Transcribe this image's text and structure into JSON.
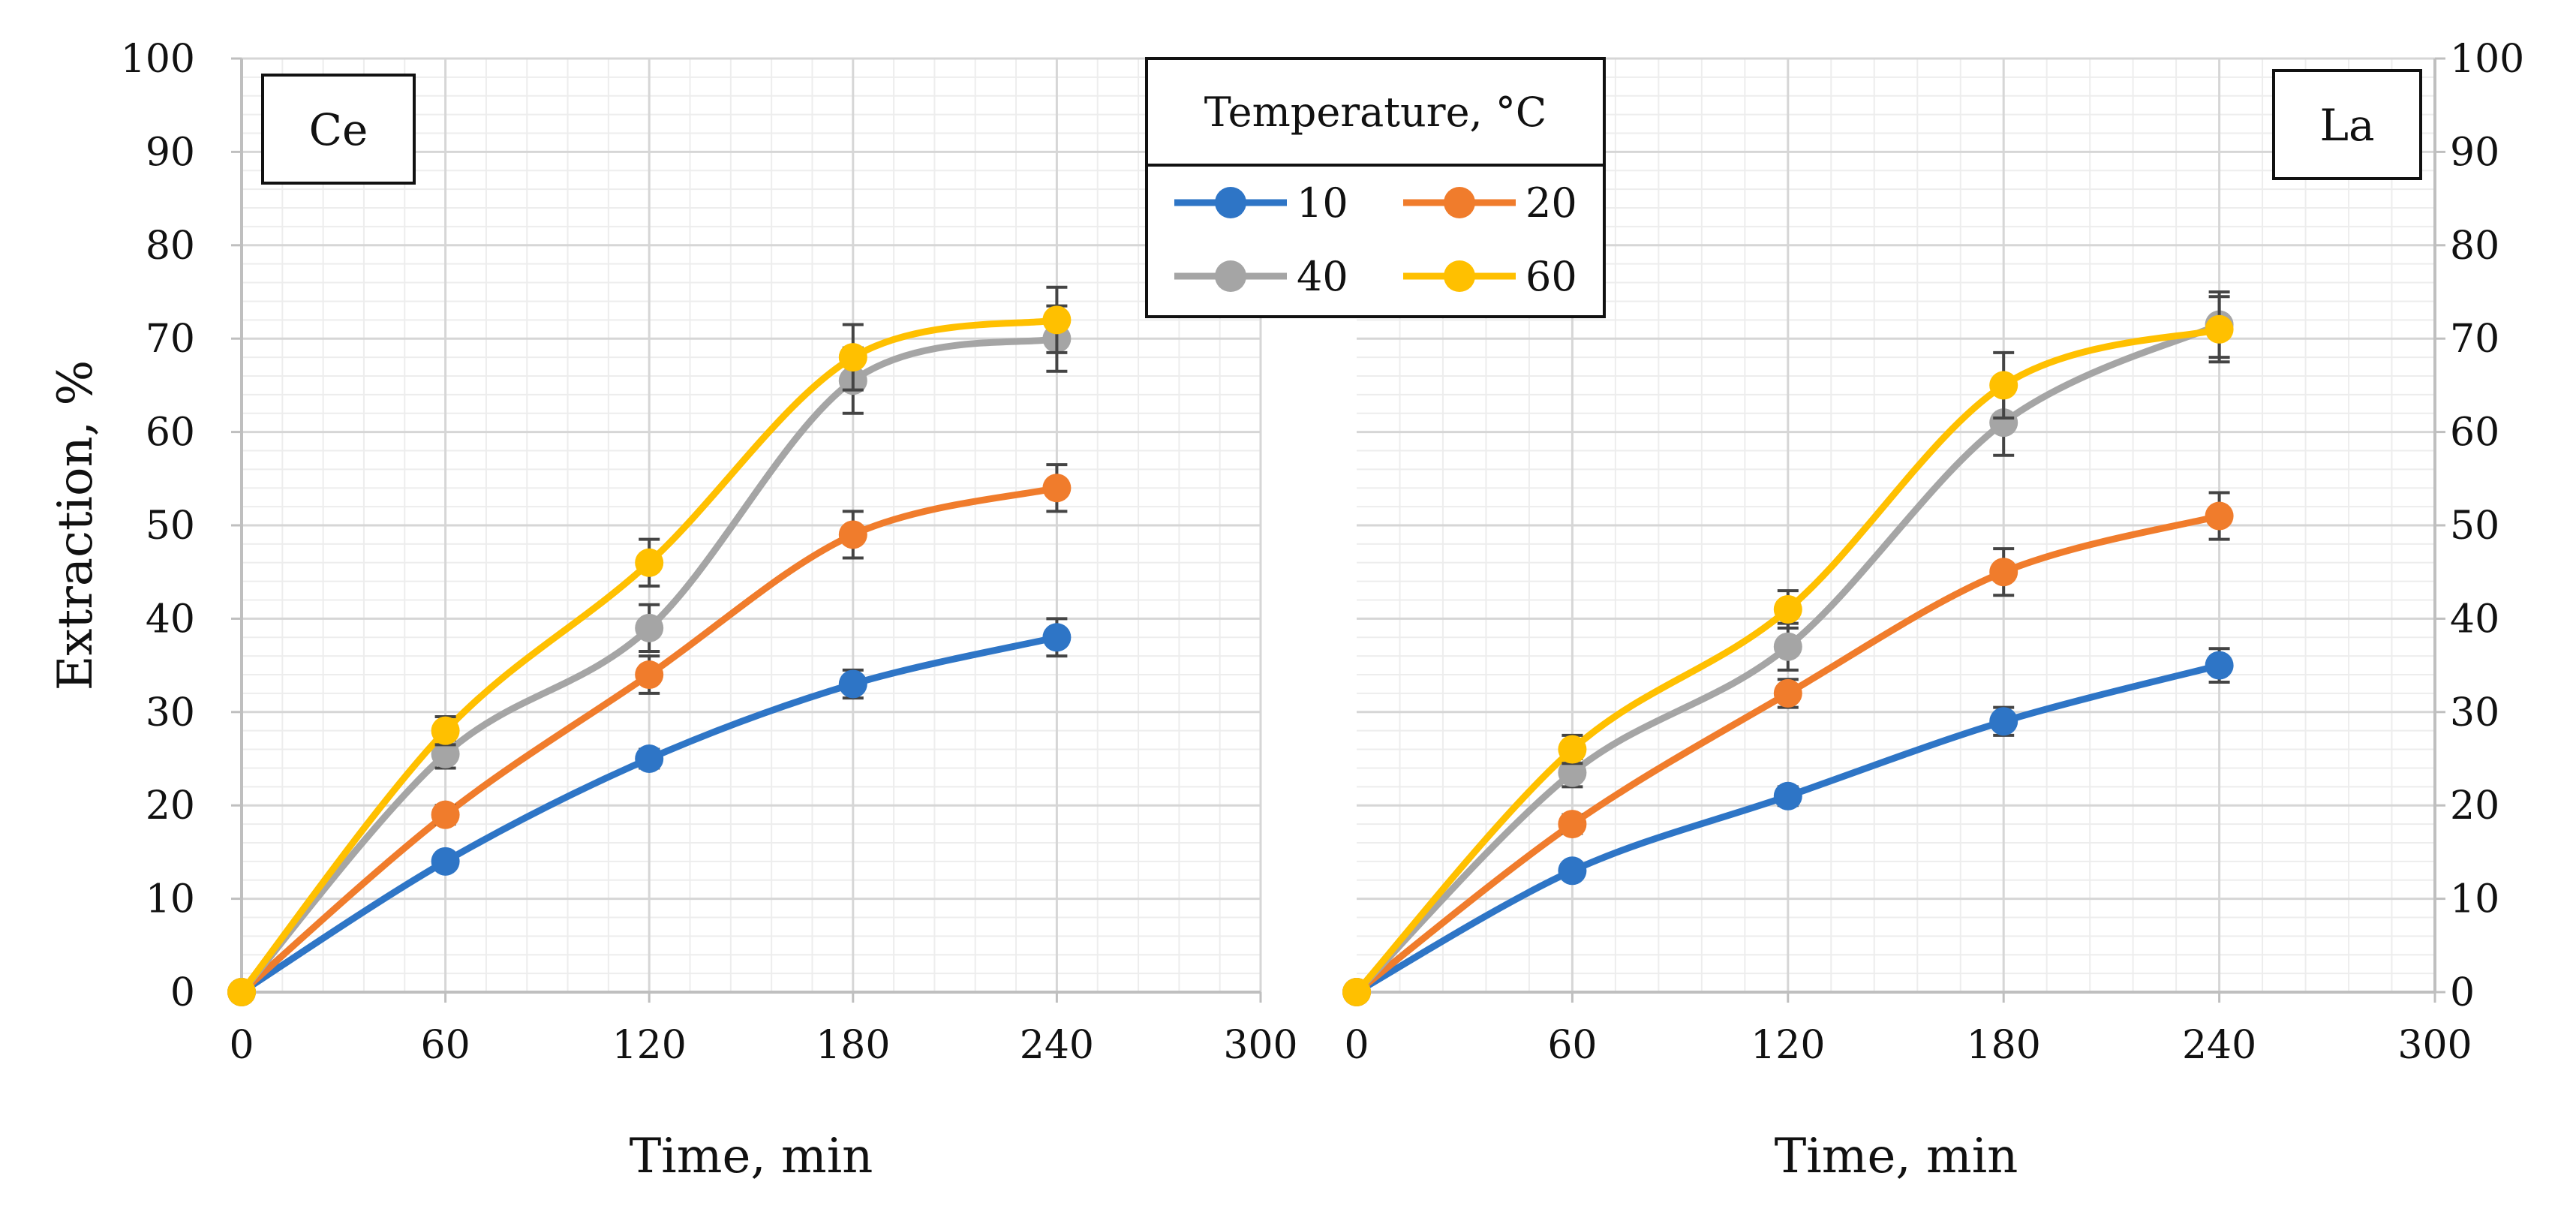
{
  "legend": {
    "title": "Temperature, °C",
    "entries": [
      {
        "label": "10",
        "color": "#2E75C6"
      },
      {
        "label": "20",
        "color": "#F07C2C"
      },
      {
        "label": "40",
        "color": "#A5A5A5"
      },
      {
        "label": "60",
        "color": "#FFC000"
      }
    ]
  },
  "chart_data": [
    {
      "type": "line",
      "panel_label": "Ce",
      "title": "",
      "xlabel": "Time, min",
      "ylabel": "Extraction, %",
      "xlim": [
        0,
        300
      ],
      "ylim": [
        0,
        100
      ],
      "xticks": [
        "0",
        "60",
        "120",
        "180",
        "240",
        "300"
      ],
      "yticks": [
        "0",
        "10",
        "20",
        "30",
        "40",
        "50",
        "60",
        "70",
        "80",
        "90",
        "100"
      ],
      "y_axis_side": "left",
      "x": [
        0,
        60,
        120,
        180,
        240
      ],
      "series": [
        {
          "name": "10",
          "color": "#2E75C6",
          "values": [
            0,
            14,
            25,
            33,
            38
          ],
          "errors": [
            0,
            0.8,
            1,
            1.5,
            2
          ]
        },
        {
          "name": "20",
          "color": "#F07C2C",
          "values": [
            0,
            19,
            34,
            49,
            54
          ],
          "errors": [
            0,
            1,
            2,
            2.5,
            2.5
          ]
        },
        {
          "name": "40",
          "color": "#A5A5A5",
          "values": [
            0,
            25.5,
            39,
            65.5,
            70
          ],
          "errors": [
            0,
            1.5,
            2.5,
            3.5,
            3.5
          ]
        },
        {
          "name": "60",
          "color": "#FFC000",
          "values": [
            0,
            28,
            46,
            68,
            72
          ],
          "errors": [
            0,
            1.5,
            2.5,
            3.5,
            3.5
          ]
        }
      ]
    },
    {
      "type": "line",
      "panel_label": "La",
      "title": "",
      "xlabel": "Time, min",
      "ylabel": "",
      "xlim": [
        0,
        300
      ],
      "ylim": [
        0,
        100
      ],
      "xticks": [
        "0",
        "60",
        "120",
        "180",
        "240",
        "300"
      ],
      "yticks": [
        "0",
        "10",
        "20",
        "30",
        "40",
        "50",
        "60",
        "70",
        "80",
        "90",
        "100"
      ],
      "y_axis_side": "right",
      "x": [
        0,
        60,
        120,
        180,
        240
      ],
      "series": [
        {
          "name": "10",
          "color": "#2E75C6",
          "values": [
            0,
            13,
            21,
            29,
            35
          ],
          "errors": [
            0,
            0.8,
            1,
            1.5,
            1.8
          ]
        },
        {
          "name": "20",
          "color": "#F07C2C",
          "values": [
            0,
            18,
            32,
            45,
            51
          ],
          "errors": [
            0,
            1,
            1.5,
            2.5,
            2.5
          ]
        },
        {
          "name": "40",
          "color": "#A5A5A5",
          "values": [
            0,
            23.5,
            37,
            61,
            71.5
          ],
          "errors": [
            0,
            1.5,
            2.5,
            3.5,
            3.5
          ]
        },
        {
          "name": "60",
          "color": "#FFC000",
          "values": [
            0,
            26,
            41,
            65,
            71
          ],
          "errors": [
            0,
            1.5,
            2,
            3.5,
            3.5
          ]
        }
      ]
    }
  ]
}
